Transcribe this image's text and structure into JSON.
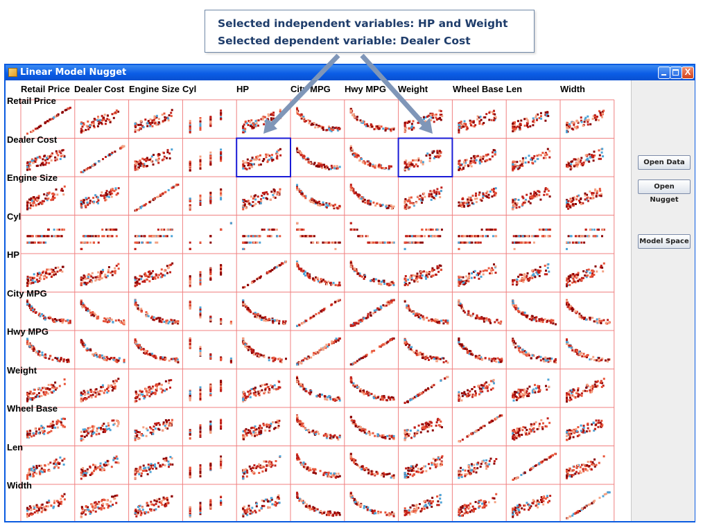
{
  "annotation": {
    "line1": "Selected independent variables: HP and Weight",
    "line2": "Selected dependent variable: Dealer Cost"
  },
  "window": {
    "title": "Linear Model Nugget",
    "icon": "java-app-icon",
    "controls": {
      "minimize": "minimize-icon",
      "maximize": "maximize-icon",
      "close": "close-icon",
      "close_glyph": "X"
    }
  },
  "matrix": {
    "variables": [
      "Retail Price",
      "Dealer Cost",
      "Engine Size",
      "Cyl",
      "HP",
      "City MPG",
      "Hwy MPG",
      "Weight",
      "Wheel Base",
      "Len",
      "Width"
    ],
    "selected_dependent": "Dealer Cost",
    "selected_independent": [
      "HP",
      "Weight"
    ],
    "colors": {
      "grid": "#f08080",
      "selection": "#1a1ad6",
      "points": [
        "#8b0000",
        "#c0201a",
        "#e8553a",
        "#f4a283",
        "#4da3d6"
      ]
    }
  },
  "sidepanel": {
    "open_data": "Open Data",
    "open_nugget": "Open Nugget",
    "model_space": "Model Space"
  }
}
